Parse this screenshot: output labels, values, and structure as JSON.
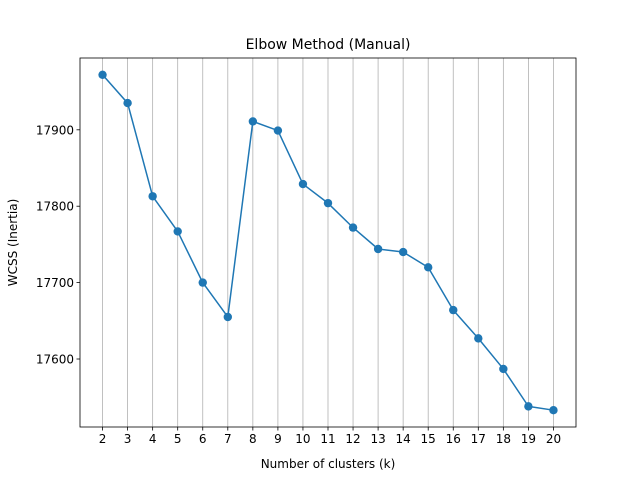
{
  "chart_data": {
    "type": "line",
    "title": "Elbow Method (Manual)",
    "xlabel": "Number of clusters (k)",
    "ylabel": "WCSS (Inertia)",
    "x": [
      2,
      3,
      4,
      5,
      6,
      7,
      8,
      9,
      10,
      11,
      12,
      13,
      14,
      15,
      16,
      17,
      18,
      19,
      20
    ],
    "series": [
      {
        "values": [
          17972,
          17935,
          17813,
          17767,
          17700,
          17655,
          17911,
          17899,
          17829,
          17804,
          17772,
          17744,
          17740,
          17720,
          17664,
          17627,
          17587,
          17538,
          17533
        ]
      }
    ],
    "xticks": [
      2,
      3,
      4,
      5,
      6,
      7,
      8,
      9,
      10,
      11,
      12,
      13,
      14,
      15,
      16,
      17,
      18,
      19,
      20
    ],
    "yticks": [
      17600,
      17700,
      17800,
      17900
    ],
    "xlim": [
      1.1,
      20.9
    ],
    "ylim": [
      17511,
      17994
    ],
    "grid": "vertical-x-only",
    "marker": "circle",
    "colors": {
      "line": "#1f77b4",
      "grid": "#b0b0b0",
      "axes": "#000000"
    }
  }
}
